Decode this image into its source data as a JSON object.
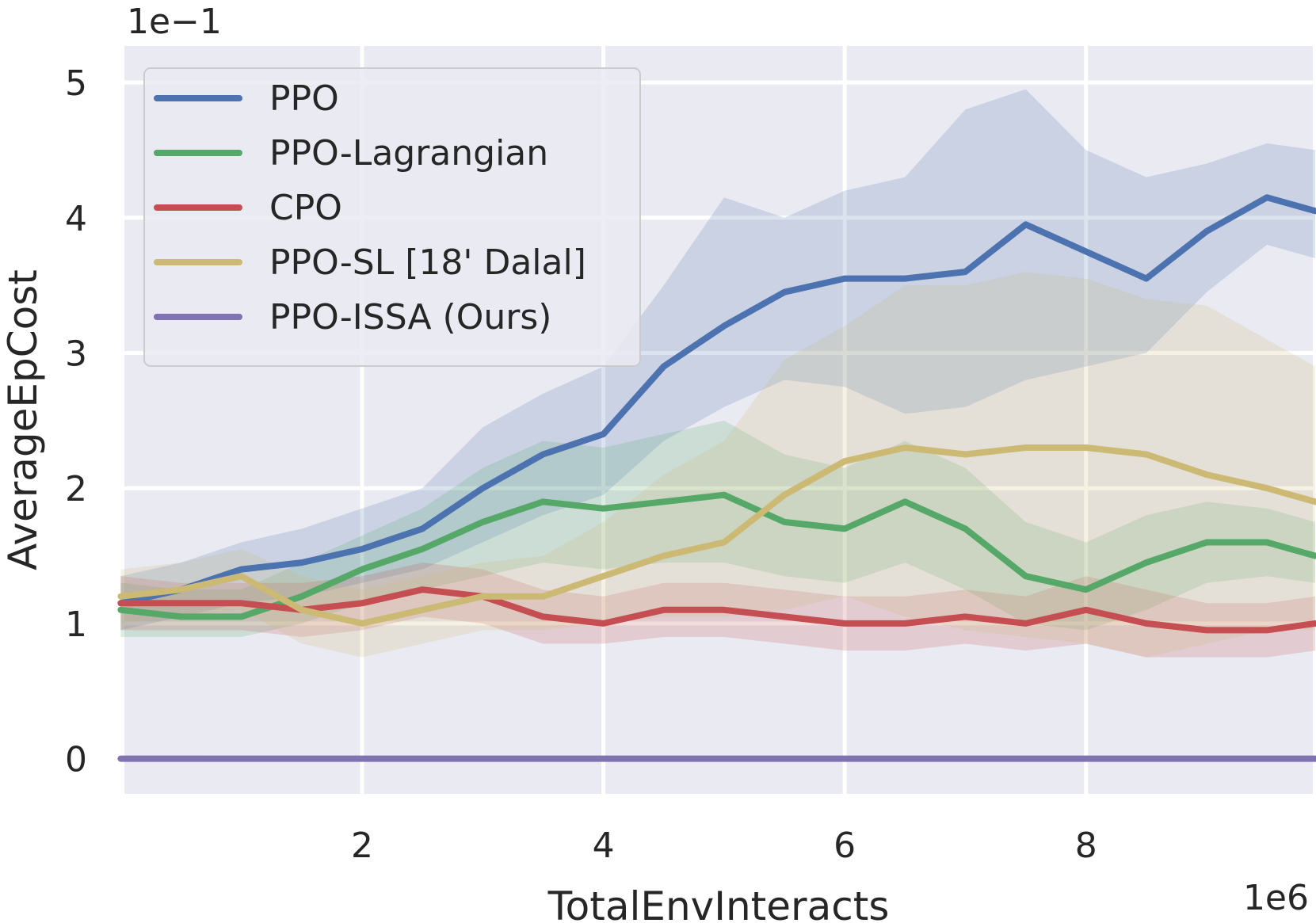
{
  "chart_data": {
    "type": "line",
    "title": "",
    "xlabel": "TotalEnvInteracts",
    "ylabel": "AverageEpCost",
    "x_scale_label": "1e6",
    "y_scale_label": "1e−1",
    "xlim": [
      0.03,
      9.88
    ],
    "ylim": [
      -0.26,
      5.27
    ],
    "x_ticks": [
      "2",
      "4",
      "6",
      "8"
    ],
    "x_tick_values": [
      2,
      4,
      6,
      8
    ],
    "y_ticks": [
      "0",
      "1",
      "2",
      "3",
      "4",
      "5"
    ],
    "y_tick_values": [
      0,
      1,
      2,
      3,
      4,
      5
    ],
    "grid": true,
    "background": "#eaeaf2",
    "legend_position": "top-left",
    "series": [
      {
        "name": "PPO",
        "color": "#4c72b0",
        "x": [
          0,
          0.5,
          1,
          1.5,
          2,
          2.5,
          3,
          3.5,
          4,
          4.5,
          5,
          5.5,
          6,
          6.5,
          7,
          7.5,
          8,
          8.5,
          9,
          9.5,
          9.9
        ],
        "y": [
          1.15,
          1.25,
          1.4,
          1.45,
          1.55,
          1.7,
          2.0,
          2.25,
          2.4,
          2.9,
          3.2,
          3.45,
          3.55,
          3.55,
          3.6,
          3.95,
          3.75,
          3.55,
          3.9,
          4.15,
          4.05
        ],
        "lower": [
          0.95,
          1.05,
          1.15,
          1.2,
          1.3,
          1.4,
          1.6,
          1.8,
          1.95,
          2.35,
          2.6,
          2.8,
          2.75,
          2.55,
          2.6,
          2.8,
          2.9,
          3.0,
          3.45,
          3.8,
          3.7
        ],
        "upper": [
          1.35,
          1.45,
          1.6,
          1.7,
          1.85,
          2.0,
          2.45,
          2.7,
          2.9,
          3.5,
          4.15,
          4.0,
          4.2,
          4.3,
          4.8,
          4.95,
          4.5,
          4.3,
          4.4,
          4.55,
          4.5
        ]
      },
      {
        "name": "PPO-Lagrangian",
        "color": "#55a868",
        "x": [
          0,
          0.5,
          1,
          1.5,
          2,
          2.5,
          3,
          3.5,
          4,
          4.5,
          5,
          5.5,
          6,
          6.5,
          7,
          7.5,
          8,
          8.5,
          9,
          9.5,
          9.9
        ],
        "y": [
          1.1,
          1.05,
          1.05,
          1.2,
          1.4,
          1.55,
          1.75,
          1.9,
          1.85,
          1.9,
          1.95,
          1.75,
          1.7,
          1.9,
          1.7,
          1.35,
          1.25,
          1.45,
          1.6,
          1.6,
          1.5
        ],
        "lower": [
          0.9,
          0.9,
          0.9,
          1.0,
          1.15,
          1.25,
          1.35,
          1.45,
          1.4,
          1.45,
          1.45,
          1.35,
          1.3,
          1.45,
          1.25,
          1.0,
          0.95,
          1.1,
          1.3,
          1.35,
          1.3
        ],
        "upper": [
          1.3,
          1.25,
          1.25,
          1.45,
          1.65,
          1.85,
          2.15,
          2.35,
          2.3,
          2.4,
          2.5,
          2.25,
          2.15,
          2.35,
          2.15,
          1.75,
          1.6,
          1.8,
          1.9,
          1.85,
          1.75
        ]
      },
      {
        "name": "CPO",
        "color": "#c44e52",
        "x": [
          0,
          0.5,
          1,
          1.5,
          2,
          2.5,
          3,
          3.5,
          4,
          4.5,
          5,
          5.5,
          6,
          6.5,
          7,
          7.5,
          8,
          8.5,
          9,
          9.5,
          9.9
        ],
        "y": [
          1.15,
          1.15,
          1.15,
          1.1,
          1.15,
          1.25,
          1.2,
          1.05,
          1.0,
          1.1,
          1.1,
          1.05,
          1.0,
          1.0,
          1.05,
          1.0,
          1.1,
          1.0,
          0.95,
          0.95,
          1.0
        ],
        "lower": [
          0.95,
          0.95,
          0.95,
          0.9,
          0.95,
          1.05,
          1.0,
          0.85,
          0.85,
          0.9,
          0.9,
          0.85,
          0.8,
          0.8,
          0.85,
          0.8,
          0.85,
          0.75,
          0.75,
          0.75,
          0.8
        ],
        "upper": [
          1.35,
          1.3,
          1.3,
          1.3,
          1.35,
          1.45,
          1.4,
          1.25,
          1.2,
          1.3,
          1.3,
          1.25,
          1.2,
          1.2,
          1.25,
          1.2,
          1.35,
          1.25,
          1.15,
          1.15,
          1.2
        ]
      },
      {
        "name": "PPO-SL [18' Dalal]",
        "color": "#ccb974",
        "x": [
          0,
          0.5,
          1,
          1.5,
          2,
          2.5,
          3,
          3.5,
          4,
          4.5,
          5,
          5.5,
          6,
          6.5,
          7,
          7.5,
          8,
          8.5,
          9,
          9.5,
          9.9
        ],
        "y": [
          1.2,
          1.25,
          1.35,
          1.1,
          1.0,
          1.1,
          1.2,
          1.2,
          1.35,
          1.5,
          1.6,
          1.95,
          2.2,
          2.3,
          2.25,
          2.3,
          2.3,
          2.25,
          2.1,
          2.0,
          1.9
        ],
        "lower": [
          1.0,
          1.05,
          1.1,
          0.85,
          0.75,
          0.85,
          0.95,
          0.95,
          1.0,
          1.05,
          1.05,
          1.1,
          1.2,
          1.05,
          0.95,
          0.9,
          0.85,
          0.75,
          0.85,
          0.95,
          0.95
        ],
        "upper": [
          1.4,
          1.45,
          1.55,
          1.35,
          1.25,
          1.35,
          1.45,
          1.5,
          1.75,
          2.1,
          2.35,
          2.95,
          3.2,
          3.5,
          3.5,
          3.6,
          3.55,
          3.4,
          3.35,
          3.1,
          2.9
        ]
      },
      {
        "name": "PPO-ISSA (Ours)",
        "color": "#8172b2",
        "x": [
          0,
          0.5,
          1,
          1.5,
          2,
          2.5,
          3,
          3.5,
          4,
          4.5,
          5,
          5.5,
          6,
          6.5,
          7,
          7.5,
          8,
          8.5,
          9,
          9.5,
          9.9
        ],
        "y": [
          0,
          0,
          0,
          0,
          0,
          0,
          0,
          0,
          0,
          0,
          0,
          0,
          0,
          0,
          0,
          0,
          0,
          0,
          0,
          0,
          0
        ]
      }
    ]
  }
}
